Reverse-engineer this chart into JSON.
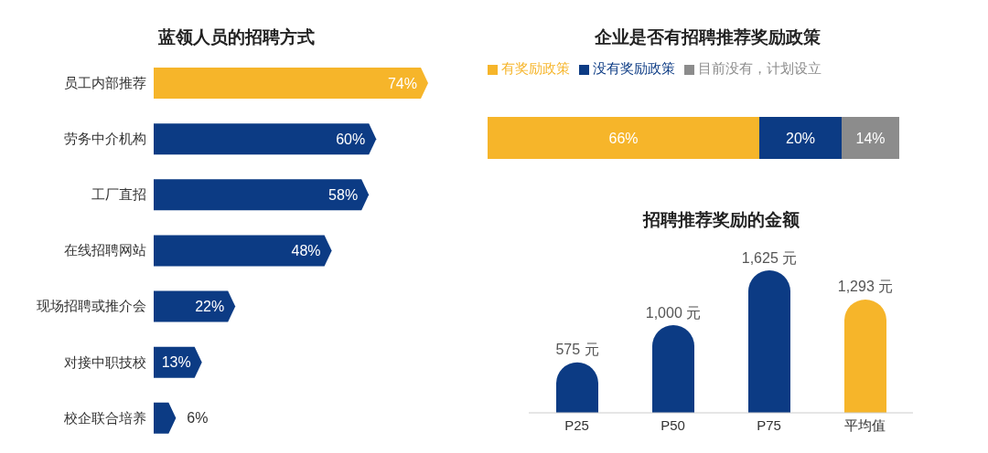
{
  "chart_data": [
    {
      "type": "bar",
      "orientation": "horizontal",
      "title": "蓝领人员的招聘方式",
      "categories": [
        "员工内部推荐",
        "劳务中介机构",
        "工厂直招",
        "在线招聘网站",
        "现场招聘或推介会",
        "对接中职技校",
        "校企联合培养"
      ],
      "values": [
        74,
        60,
        58,
        48,
        22,
        13,
        6
      ],
      "colors": [
        "#f6b52a",
        "#0c3b84",
        "#0c3b84",
        "#0c3b84",
        "#0c3b84",
        "#0c3b84",
        "#0c3b84"
      ],
      "value_labels": [
        "74%",
        "60%",
        "58%",
        "48%",
        "22%",
        "13%",
        "6%"
      ]
    },
    {
      "type": "bar",
      "orientation": "horizontal",
      "stacked": true,
      "title": "企业是否有招聘推荐奖励政策",
      "categories": [
        null
      ],
      "legend": "top left",
      "series": [
        {
          "name": "有奖励政策",
          "color": "#f6b52a",
          "values": [
            66
          ],
          "value_labels": [
            "66%"
          ]
        },
        {
          "name": "没有奖励政策",
          "color": "#0c3b84",
          "values": [
            20
          ],
          "value_labels": [
            "20%"
          ]
        },
        {
          "name": "目前没有，计划设立",
          "color": "#8c8c8c",
          "values": [
            14
          ],
          "value_labels": [
            "14%"
          ]
        }
      ]
    },
    {
      "type": "bar",
      "title": "招聘推荐奖励的金额",
      "categories": [
        "P25",
        "P50",
        "P75",
        "平均值"
      ],
      "values": [
        575,
        1000,
        1625,
        1293
      ],
      "colors": [
        "#0c3b84",
        "#0c3b84",
        "#0c3b84",
        "#f6b52a"
      ],
      "value_labels": [
        "575 元",
        "1,000 元",
        "1,625 元",
        "1,293 元"
      ]
    }
  ]
}
